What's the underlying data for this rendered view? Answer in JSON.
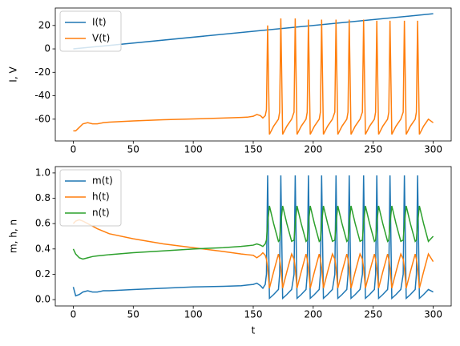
{
  "chart_data": [
    {
      "type": "line",
      "ylabel": "I, V",
      "xlim": [
        -15,
        315
      ],
      "ylim": [
        -78.6,
        34.9
      ],
      "xticks": [
        0,
        50,
        100,
        150,
        200,
        250,
        300
      ],
      "yticks": [
        -60,
        -40,
        -20,
        0,
        20
      ],
      "legend": "upper left",
      "x": [
        0,
        2,
        5,
        8,
        12,
        16,
        20,
        25,
        30,
        50,
        75,
        100,
        125,
        140,
        145,
        150,
        153,
        156,
        158,
        160,
        161,
        162,
        163.5,
        167,
        171,
        172,
        173,
        174.5,
        178,
        182,
        184,
        185,
        186.5,
        190,
        194,
        195,
        196,
        197.5,
        201,
        205,
        206,
        207,
        208.5,
        212,
        216,
        218,
        219,
        220.5,
        224,
        228,
        229,
        230,
        231.5,
        235,
        239,
        241,
        242,
        243.5,
        247,
        251,
        252,
        253,
        254.5,
        258,
        262,
        263,
        264,
        265.5,
        269,
        273,
        275,
        276,
        277.5,
        281,
        285,
        286,
        287,
        288.5,
        292,
        296,
        300
      ],
      "series": [
        {
          "name": "I(t)",
          "color": "#1f77b4",
          "x": [
            0,
            300
          ],
          "values": [
            0,
            30
          ]
        },
        {
          "name": "V(t)",
          "color": "#ff7f0e",
          "values": [
            -70,
            -70,
            -67,
            -64,
            -63,
            -64,
            -64,
            -63,
            -62.5,
            -61.5,
            -60.5,
            -59.8,
            -59,
            -58.5,
            -58.3,
            -57.5,
            -56,
            -57,
            -59,
            -57,
            -52,
            20,
            -73,
            -66,
            -60,
            -54,
            26,
            -73,
            -66,
            -60,
            -54,
            26,
            -73,
            -66,
            -60,
            -54,
            25,
            -73,
            -66,
            -60,
            -54,
            25,
            -73,
            -66,
            -60,
            -54,
            25,
            -73,
            -66,
            -60,
            -54,
            25,
            -73,
            -66,
            -60,
            -54,
            25,
            -73,
            -66,
            -60,
            -54,
            24,
            -73,
            -66,
            -60,
            -54,
            24,
            -73,
            -66,
            -60,
            -54,
            24,
            -73,
            -66,
            -60,
            -54,
            24,
            -73,
            -66,
            -60,
            -63
          ]
        }
      ]
    },
    {
      "type": "line",
      "xlabel": "t",
      "ylabel": "m, h, n",
      "xlim": [
        -15,
        315
      ],
      "ylim": [
        -0.05,
        1.05
      ],
      "xticks": [
        0,
        50,
        100,
        150,
        200,
        250,
        300
      ],
      "yticks": [
        {
          "value": 0,
          "label": "0.0"
        },
        0.2,
        0.4,
        0.6,
        0.8,
        {
          "value": 1,
          "label": "1.0"
        }
      ],
      "legend": "upper left",
      "x": [
        0,
        2,
        5,
        8,
        12,
        16,
        20,
        25,
        30,
        50,
        75,
        100,
        125,
        140,
        145,
        150,
        153,
        156,
        158,
        160,
        161,
        162,
        163.5,
        167,
        171,
        172,
        173,
        174.5,
        178,
        182,
        184,
        185,
        186.5,
        190,
        194,
        195,
        196,
        197.5,
        201,
        205,
        206,
        207,
        208.5,
        212,
        216,
        218,
        219,
        220.5,
        224,
        228,
        229,
        230,
        231.5,
        235,
        239,
        241,
        242,
        243.5,
        247,
        251,
        252,
        253,
        254.5,
        258,
        262,
        263,
        264,
        265.5,
        269,
        273,
        275,
        276,
        277.5,
        281,
        285,
        286,
        287,
        288.5,
        292,
        296,
        300
      ],
      "series": [
        {
          "name": "m(t)",
          "color": "#1f77b4",
          "values": [
            0.1,
            0.03,
            0.04,
            0.06,
            0.07,
            0.06,
            0.06,
            0.07,
            0.07,
            0.08,
            0.09,
            0.1,
            0.105,
            0.11,
            0.115,
            0.12,
            0.13,
            0.11,
            0.09,
            0.12,
            0.2,
            0.98,
            0.01,
            0.04,
            0.08,
            0.2,
            0.98,
            0.01,
            0.04,
            0.08,
            0.2,
            0.98,
            0.01,
            0.04,
            0.08,
            0.2,
            0.98,
            0.01,
            0.04,
            0.08,
            0.2,
            0.98,
            0.01,
            0.04,
            0.08,
            0.2,
            0.98,
            0.01,
            0.04,
            0.08,
            0.2,
            0.98,
            0.01,
            0.04,
            0.08,
            0.2,
            0.98,
            0.01,
            0.04,
            0.08,
            0.2,
            0.98,
            0.01,
            0.04,
            0.08,
            0.2,
            0.98,
            0.01,
            0.04,
            0.08,
            0.2,
            0.98,
            0.01,
            0.04,
            0.08,
            0.2,
            0.98,
            0.01,
            0.04,
            0.08,
            0.06
          ]
        },
        {
          "name": "h(t)",
          "color": "#ff7f0e",
          "values": [
            0.6,
            0.62,
            0.63,
            0.62,
            0.6,
            0.58,
            0.56,
            0.54,
            0.52,
            0.48,
            0.44,
            0.41,
            0.38,
            0.36,
            0.355,
            0.35,
            0.33,
            0.35,
            0.37,
            0.35,
            0.32,
            0.25,
            0.09,
            0.22,
            0.36,
            0.32,
            0.25,
            0.09,
            0.22,
            0.36,
            0.32,
            0.25,
            0.09,
            0.22,
            0.36,
            0.32,
            0.25,
            0.09,
            0.22,
            0.36,
            0.32,
            0.25,
            0.09,
            0.22,
            0.36,
            0.32,
            0.25,
            0.09,
            0.22,
            0.36,
            0.32,
            0.25,
            0.09,
            0.22,
            0.36,
            0.32,
            0.25,
            0.09,
            0.22,
            0.36,
            0.32,
            0.25,
            0.09,
            0.22,
            0.36,
            0.32,
            0.25,
            0.09,
            0.22,
            0.36,
            0.32,
            0.25,
            0.09,
            0.22,
            0.36,
            0.32,
            0.25,
            0.09,
            0.22,
            0.36,
            0.3
          ]
        },
        {
          "name": "n(t)",
          "color": "#2ca02c",
          "values": [
            0.4,
            0.36,
            0.33,
            0.32,
            0.33,
            0.34,
            0.345,
            0.35,
            0.355,
            0.37,
            0.385,
            0.4,
            0.41,
            0.42,
            0.425,
            0.43,
            0.44,
            0.43,
            0.42,
            0.44,
            0.47,
            0.6,
            0.74,
            0.6,
            0.46,
            0.47,
            0.6,
            0.74,
            0.6,
            0.46,
            0.47,
            0.6,
            0.74,
            0.6,
            0.46,
            0.47,
            0.6,
            0.74,
            0.6,
            0.46,
            0.47,
            0.6,
            0.74,
            0.6,
            0.46,
            0.47,
            0.6,
            0.74,
            0.6,
            0.46,
            0.47,
            0.6,
            0.74,
            0.6,
            0.46,
            0.47,
            0.6,
            0.74,
            0.6,
            0.46,
            0.47,
            0.6,
            0.74,
            0.6,
            0.46,
            0.47,
            0.6,
            0.74,
            0.6,
            0.46,
            0.47,
            0.6,
            0.74,
            0.6,
            0.46,
            0.47,
            0.6,
            0.74,
            0.6,
            0.46,
            0.5
          ]
        }
      ]
    }
  ]
}
